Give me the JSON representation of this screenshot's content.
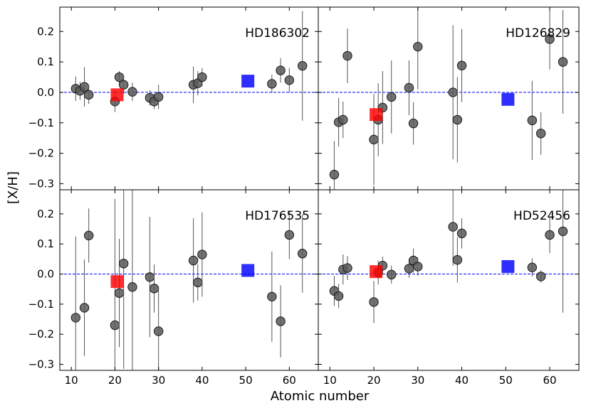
{
  "chart_data": {
    "type": "scatter",
    "xlabel": "Atomic number",
    "ylabel": "[X/H]",
    "xlim": [
      8.5,
      65.5
    ],
    "x_ticks": [
      10,
      20,
      30,
      40,
      50,
      60
    ],
    "reference_value": 0.0,
    "colors": {
      "points": "#595959",
      "red_marker": "#ff0000",
      "blue_marker": "#0000ff",
      "reference_line": "#0000ff"
    },
    "panels": [
      {
        "title": "HD186302",
        "ylim": [
          -0.32,
          0.28
        ],
        "y_ticks": [
          0.2,
          0.1,
          0.0,
          -0.1,
          -0.2,
          -0.3
        ],
        "y_tick_labels": [
          "0.2",
          "0.1",
          "0.0",
          "−0.1",
          "−0.2",
          "−0.3"
        ],
        "points": [
          {
            "x": 11,
            "y": 0.012,
            "err": 0.04
          },
          {
            "x": 12,
            "y": 0.005,
            "err": 0.03
          },
          {
            "x": 13,
            "y": 0.018,
            "err": 0.065
          },
          {
            "x": 14,
            "y": -0.008,
            "err": 0.03
          },
          {
            "x": 20,
            "y": -0.03,
            "err": 0.035
          },
          {
            "x": 21,
            "y": 0.05,
            "err": 0.02
          },
          {
            "x": 22,
            "y": 0.025,
            "err": 0.03
          },
          {
            "x": 24,
            "y": 0.002,
            "err": 0.03
          },
          {
            "x": 28,
            "y": -0.018,
            "err": 0.025
          },
          {
            "x": 29,
            "y": -0.03,
            "err": 0.025
          },
          {
            "x": 30,
            "y": -0.015,
            "err": 0.04
          },
          {
            "x": 38,
            "y": 0.025,
            "err": 0.06
          },
          {
            "x": 39,
            "y": 0.03,
            "err": 0.04
          },
          {
            "x": 40,
            "y": 0.05,
            "err": 0.03
          },
          {
            "x": 56,
            "y": 0.028,
            "err": 0.03
          },
          {
            "x": 58,
            "y": 0.072,
            "err": 0.04
          },
          {
            "x": 60,
            "y": 0.04,
            "err": 0.04
          },
          {
            "x": 63,
            "y": 0.087,
            "err": 0.18
          }
        ],
        "red_marker": {
          "x": 20.5,
          "y": -0.008
        },
        "blue_marker": {
          "x": 50.5,
          "y": 0.037
        }
      },
      {
        "title": "HD126829",
        "ylim": [
          -0.32,
          0.28
        ],
        "y_ticks": [
          0.2,
          0.1,
          0.0,
          -0.1,
          -0.2,
          -0.3
        ],
        "y_tick_labels": [
          "0.2",
          "0.1",
          "0.0",
          "−0.1",
          "−0.2",
          "−0.3"
        ],
        "points": [
          {
            "x": 11,
            "y": -0.27,
            "err": 0.11
          },
          {
            "x": 12,
            "y": -0.098,
            "err": 0.08
          },
          {
            "x": 13,
            "y": -0.09,
            "err": 0.06
          },
          {
            "x": 14,
            "y": 0.12,
            "err": 0.09
          },
          {
            "x": 20,
            "y": -0.155,
            "err": 0.15
          },
          {
            "x": 21,
            "y": -0.09,
            "err": 0.12
          },
          {
            "x": 22,
            "y": -0.05,
            "err": 0.12
          },
          {
            "x": 24,
            "y": -0.015,
            "err": 0.12
          },
          {
            "x": 28,
            "y": 0.015,
            "err": 0.09
          },
          {
            "x": 29,
            "y": -0.102,
            "err": 0.07
          },
          {
            "x": 30,
            "y": 0.15,
            "err": 0.14
          },
          {
            "x": 38,
            "y": 0.0,
            "err": 0.22
          },
          {
            "x": 39,
            "y": -0.09,
            "err": 0.14
          },
          {
            "x": 40,
            "y": 0.088,
            "err": 0.12
          },
          {
            "x": 56,
            "y": -0.092,
            "err": 0.13
          },
          {
            "x": 58,
            "y": -0.135,
            "err": 0.07
          },
          {
            "x": 60,
            "y": 0.175,
            "err": 0.1
          },
          {
            "x": 63,
            "y": 0.1,
            "err": 0.17
          }
        ],
        "red_marker": {
          "x": 20.5,
          "y": -0.073
        },
        "blue_marker": {
          "x": 50.5,
          "y": -0.023
        }
      },
      {
        "title": "HD176535",
        "ylim": [
          -0.32,
          0.28
        ],
        "y_ticks": [
          0.2,
          0.1,
          0.0,
          -0.1,
          -0.2,
          -0.3
        ],
        "y_tick_labels": [
          "0.2",
          "0.1",
          "0.0",
          "−0.1",
          "−0.2",
          "−0.3"
        ],
        "points": [
          {
            "x": 11,
            "y": -0.145,
            "err": 0.27
          },
          {
            "x": 13,
            "y": -0.112,
            "err": 0.16
          },
          {
            "x": 14,
            "y": 0.128,
            "err": 0.09
          },
          {
            "x": 20,
            "y": -0.17,
            "err": 0.42
          },
          {
            "x": 21,
            "y": -0.063,
            "err": 0.18
          },
          {
            "x": 22,
            "y": 0.035,
            "err": 0.35
          },
          {
            "x": 24,
            "y": -0.043,
            "err": 0.33
          },
          {
            "x": 28,
            "y": -0.01,
            "err": 0.2
          },
          {
            "x": 29,
            "y": -0.048,
            "err": 0.08
          },
          {
            "x": 30,
            "y": -0.19,
            "err": 0.14
          },
          {
            "x": 38,
            "y": 0.045,
            "err": 0.14
          },
          {
            "x": 39,
            "y": -0.028,
            "err": 0.06
          },
          {
            "x": 40,
            "y": 0.065,
            "err": 0.14
          },
          {
            "x": 56,
            "y": -0.075,
            "err": 0.15
          },
          {
            "x": 58,
            "y": -0.157,
            "err": 0.12
          },
          {
            "x": 60,
            "y": 0.13,
            "err": 0.08
          },
          {
            "x": 63,
            "y": 0.068,
            "err": 0.13
          }
        ],
        "red_marker": {
          "x": 20.5,
          "y": -0.025
        },
        "blue_marker": {
          "x": 50.5,
          "y": 0.012
        }
      },
      {
        "title": "HD52456",
        "ylim": [
          -0.32,
          0.28
        ],
        "y_ticks": [
          0.2,
          0.1,
          0.0,
          -0.1,
          -0.2,
          -0.3
        ],
        "y_tick_labels": [
          "0.2",
          "0.1",
          "0.0",
          "−0.1",
          "−0.2",
          "−0.3"
        ],
        "points": [
          {
            "x": 11,
            "y": -0.056,
            "err": 0.05
          },
          {
            "x": 12,
            "y": -0.073,
            "err": 0.04
          },
          {
            "x": 13,
            "y": 0.015,
            "err": 0.05
          },
          {
            "x": 14,
            "y": 0.02,
            "err": 0.04
          },
          {
            "x": 20,
            "y": -0.093,
            "err": 0.07
          },
          {
            "x": 21,
            "y": 0.005,
            "err": 0.04
          },
          {
            "x": 22,
            "y": 0.028,
            "err": 0.03
          },
          {
            "x": 24,
            "y": -0.002,
            "err": 0.03
          },
          {
            "x": 28,
            "y": 0.018,
            "err": 0.03
          },
          {
            "x": 29,
            "y": 0.045,
            "err": 0.04
          },
          {
            "x": 30,
            "y": 0.025,
            "err": 0.03
          },
          {
            "x": 38,
            "y": 0.157,
            "err": 0.13
          },
          {
            "x": 39,
            "y": 0.047,
            "err": 0.075
          },
          {
            "x": 40,
            "y": 0.135,
            "err": 0.05
          },
          {
            "x": 56,
            "y": 0.022,
            "err": 0.03
          },
          {
            "x": 58,
            "y": -0.008,
            "err": 0.02
          },
          {
            "x": 60,
            "y": 0.13,
            "err": 0.06
          },
          {
            "x": 63,
            "y": 0.142,
            "err": 0.27
          }
        ],
        "red_marker": {
          "x": 20.5,
          "y": 0.008
        },
        "blue_marker": {
          "x": 50.5,
          "y": 0.025
        }
      }
    ]
  }
}
